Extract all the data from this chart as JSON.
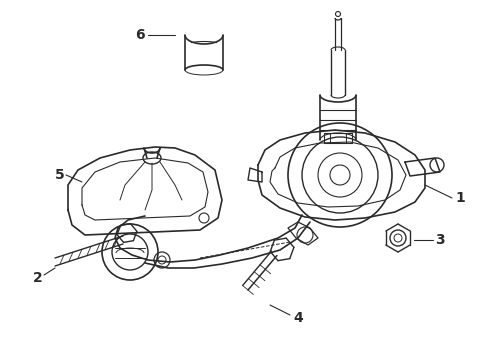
{
  "bg_color": "#ffffff",
  "line_color": "#2a2a2a",
  "label_color": "#000000",
  "font_size": 10,
  "figsize": [
    4.89,
    3.6
  ],
  "dpi": 100
}
